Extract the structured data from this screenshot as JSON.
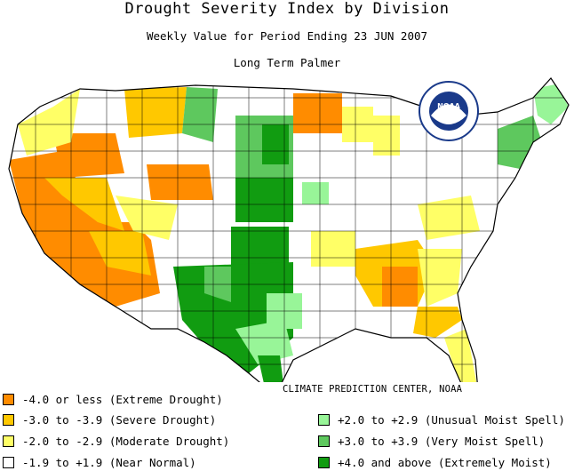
{
  "title": "Drought Severity Index by Division",
  "subtitle": "Weekly Value for Period Ending 23 JUN 2007",
  "subtitle2": "Long Term Palmer",
  "credit": "CLIMATE PREDICTION CENTER, NOAA",
  "logo_text": "NOAA",
  "colors": {
    "extreme_drought": "#ff8c00",
    "severe_drought": "#ffc800",
    "moderate_drought": "#ffff66",
    "near_normal": "#ffffff",
    "unusual_moist": "#98f598",
    "very_moist": "#5ec85e",
    "extremely_moist": "#119c11"
  },
  "legend": [
    {
      "label": "-4.0 or less (Extreme Drought)",
      "color": "#ff8c00"
    },
    {
      "label": "-3.0 to -3.9 (Severe Drought)",
      "color": "#ffc800"
    },
    {
      "label": "-2.0 to -2.9 (Moderate Drought)",
      "color": "#ffff66"
    },
    {
      "label": "-1.9 to +1.9 (Near Normal)",
      "color": "#ffffff"
    },
    {
      "label": "+2.0 to +2.9 (Unusual Moist Spell)",
      "color": "#98f598"
    },
    {
      "label": "+3.0 to +3.9 (Very Moist Spell)",
      "color": "#5ec85e"
    },
    {
      "label": "+4.0 and above (Extremely Moist)",
      "color": "#119c11"
    }
  ]
}
